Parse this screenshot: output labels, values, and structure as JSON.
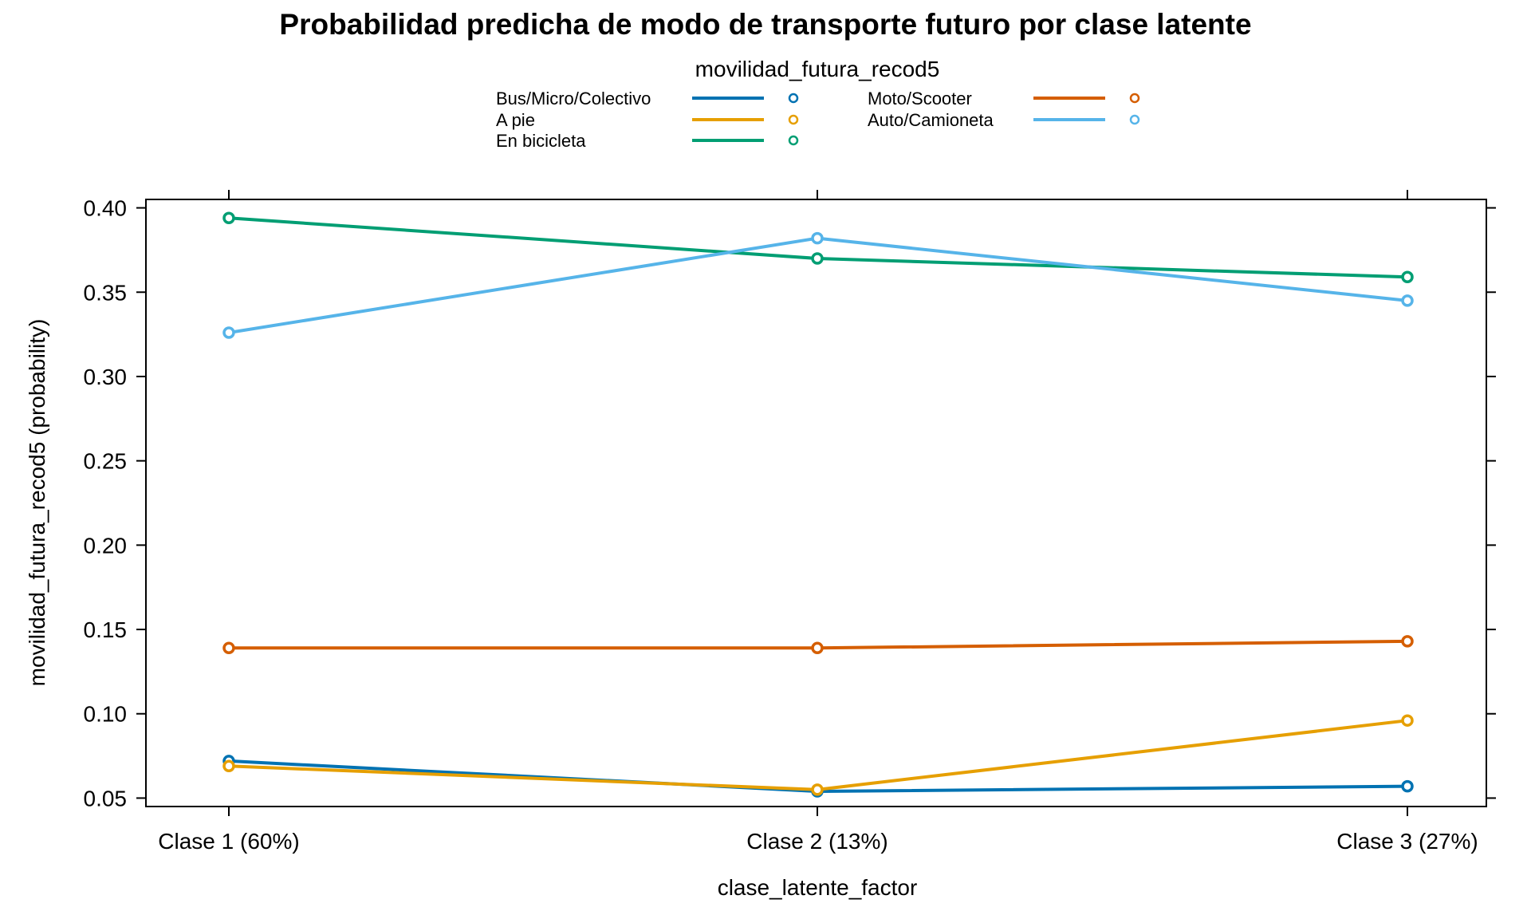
{
  "chart_data": {
    "type": "line",
    "title": "Probabilidad predicha de modo de transporte futuro por clase latente",
    "legend_title": "movilidad_futura_recod5",
    "legend_placement": "top",
    "xlabel": "clase_latente_factor",
    "ylabel": "movilidad_futura_recod5 (probability)",
    "categories": [
      "Clase 1 (60%)",
      "Clase 2 (13%)",
      "Clase 3 (27%)"
    ],
    "ylim": [
      0.045,
      0.405
    ],
    "yticks": [
      0.05,
      0.1,
      0.15,
      0.2,
      0.25,
      0.3,
      0.35,
      0.4
    ],
    "ytick_labels": [
      "0.05",
      "0.10",
      "0.15",
      "0.20",
      "0.25",
      "0.30",
      "0.35",
      "0.40"
    ],
    "grid": false,
    "series": [
      {
        "name": "Bus/Micro/Colectivo",
        "color": "#0072B2",
        "values": [
          0.072,
          0.054,
          0.057
        ]
      },
      {
        "name": "A pie",
        "color": "#E69F00",
        "values": [
          0.069,
          0.055,
          0.096
        ]
      },
      {
        "name": "En bicicleta",
        "color": "#009E73",
        "values": [
          0.394,
          0.37,
          0.359
        ]
      },
      {
        "name": "Moto/Scooter",
        "color": "#D55E00",
        "values": [
          0.139,
          0.139,
          0.143
        ]
      },
      {
        "name": "Auto/Camioneta",
        "color": "#56B4E9",
        "values": [
          0.326,
          0.382,
          0.345
        ]
      }
    ]
  }
}
